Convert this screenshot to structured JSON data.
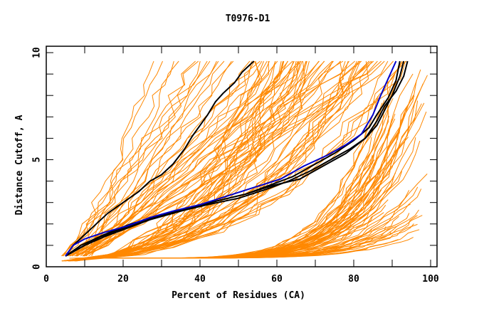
{
  "chart_data": {
    "type": "line",
    "title": "T0976-D1",
    "xlabel": "Percent of Residues (CA)",
    "ylabel": "Distance Cutoff, A",
    "xlim": [
      0,
      100
    ],
    "ylim": [
      0,
      10
    ],
    "x_ticks": [
      0,
      20,
      40,
      60,
      80,
      100
    ],
    "x_tick_labels": [
      "0",
      "20",
      "40",
      "60",
      "80",
      "100"
    ],
    "x_minor_ticks": [
      10,
      30,
      50,
      70,
      90
    ],
    "y_ticks": [
      0,
      5,
      10
    ],
    "y_tick_labels": [
      "0",
      "5",
      "10"
    ],
    "y_minor_ticks": [
      1,
      2,
      3,
      4,
      6,
      7,
      8,
      9
    ],
    "grid": false,
    "legend": "none",
    "colors": {
      "other_models": "#ff8800",
      "highlight_black": "#000000",
      "highlight_blue": "#0000cc",
      "frame": "#000000"
    },
    "y_levels": [
      0.5,
      1,
      1.5,
      2,
      2.5,
      3,
      3.5,
      4,
      4.5,
      5,
      5.5,
      6,
      6.5,
      7,
      7.5,
      8,
      8.5,
      9,
      9.6
    ],
    "highlight_series": [
      {
        "name": "black-1",
        "color": "#000000",
        "x": [
          5,
          7,
          10,
          13,
          16,
          20,
          24,
          27,
          30,
          33,
          36,
          38,
          40,
          42,
          44,
          46,
          49,
          51,
          54
        ],
        "y": [
          0.5,
          1,
          1.5,
          2,
          2.5,
          3,
          3.5,
          4,
          4.3,
          4.8,
          5.5,
          6.1,
          6.6,
          7.1,
          7.7,
          8.1,
          8.6,
          9.1,
          9.6
        ]
      },
      {
        "name": "black-2",
        "color": "#000000",
        "x": [
          5,
          9,
          15,
          22,
          28,
          35,
          42,
          50,
          57,
          63,
          69,
          74,
          79,
          83,
          86,
          88,
          90,
          92,
          93
        ],
        "y": [
          0.5,
          1,
          1.5,
          2,
          2.3,
          2.6,
          2.9,
          3.2,
          3.6,
          4,
          4.5,
          5,
          5.5,
          6,
          6.6,
          7.3,
          8,
          8.9,
          9.6
        ]
      },
      {
        "name": "black-3",
        "color": "#000000",
        "x": [
          5,
          10,
          15,
          21,
          27,
          33,
          39,
          45,
          52,
          58,
          64,
          70,
          75,
          80,
          84,
          86,
          89,
          91,
          92
        ],
        "y": [
          0.5,
          1,
          1.4,
          1.8,
          2.2,
          2.5,
          2.8,
          3.1,
          3.4,
          3.8,
          4.2,
          4.8,
          5.3,
          5.9,
          6.5,
          7.1,
          7.9,
          8.7,
          9.6
        ]
      },
      {
        "name": "black-4",
        "color": "#000000",
        "x": [
          5,
          9,
          14,
          20,
          26,
          32,
          38,
          45,
          52,
          59,
          66,
          72,
          78,
          83,
          86,
          88,
          91,
          93,
          94
        ],
        "y": [
          0.5,
          0.9,
          1.4,
          1.8,
          2.2,
          2.5,
          2.8,
          3.1,
          3.4,
          3.8,
          4.1,
          4.7,
          5.3,
          6,
          6.8,
          7.5,
          8.2,
          8.9,
          9.6
        ]
      },
      {
        "name": "blue",
        "color": "#0000cc",
        "x": [
          5,
          7,
          10,
          15,
          21,
          27,
          33,
          40,
          47,
          54,
          61,
          67,
          73,
          78,
          82,
          85,
          87,
          89,
          91
        ],
        "y": [
          0.5,
          1,
          1.3,
          1.6,
          1.9,
          2.3,
          2.6,
          2.9,
          3.3,
          3.7,
          4.1,
          4.7,
          5.2,
          5.7,
          6.2,
          7.1,
          8,
          8.8,
          9.6
        ]
      }
    ],
    "other_models_count": 150
  }
}
